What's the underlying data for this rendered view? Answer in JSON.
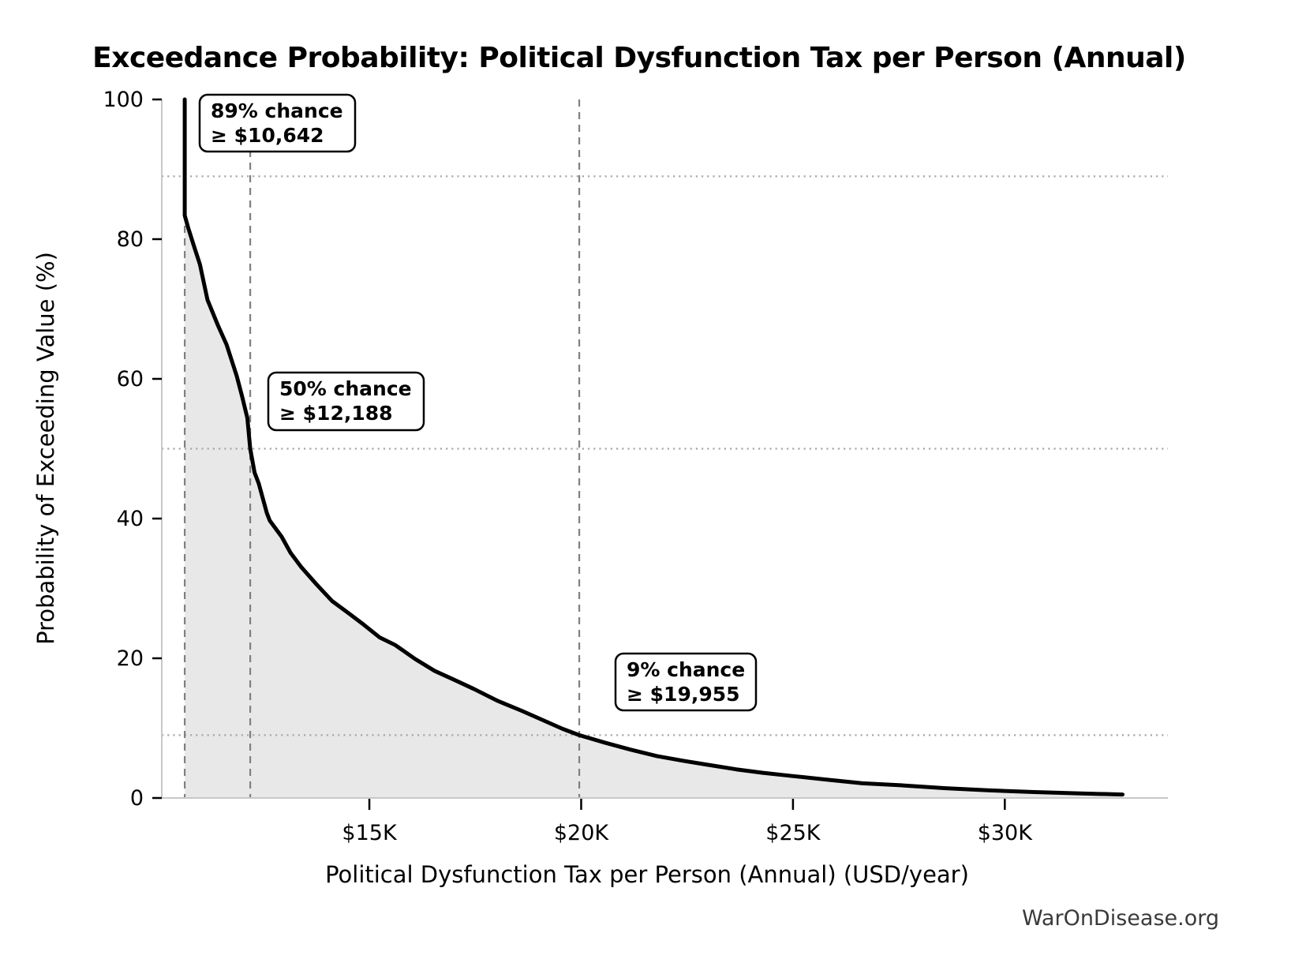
{
  "watermark": "WarOnDisease.org",
  "chart_data": {
    "type": "line",
    "title": "Exceedance Probability: Political Dysfunction Tax per Person (Annual)",
    "xlabel": "Political Dysfunction Tax per Person (Annual) (USD/year)",
    "ylabel": "Probability of Exceeding Value (%)",
    "xlim": [
      10100,
      33850
    ],
    "ylim": [
      0,
      100
    ],
    "grid": "dotted horizontal reference lines at annotation probabilities; dashed vertical reference lines at annotation values",
    "legend_position": "none",
    "x_ticks": [
      {
        "value": 15000,
        "label": "$15K"
      },
      {
        "value": 20000,
        "label": "$20K"
      },
      {
        "value": 25000,
        "label": "$25K"
      },
      {
        "value": 30000,
        "label": "$30K"
      }
    ],
    "y_ticks": [
      {
        "value": 0,
        "label": "0"
      },
      {
        "value": 20,
        "label": "20"
      },
      {
        "value": 40,
        "label": "40"
      },
      {
        "value": 60,
        "label": "60"
      },
      {
        "value": 80,
        "label": "80"
      },
      {
        "value": 100,
        "label": "100"
      }
    ],
    "series": [
      {
        "name": "exceedance-probability-curve",
        "fill_under_curve": true,
        "points": [
          [
            10642,
            100
          ],
          [
            10642,
            83.4
          ],
          [
            10720,
            81.7
          ],
          [
            10850,
            79.2
          ],
          [
            11000,
            76.4
          ],
          [
            11180,
            71.3
          ],
          [
            11430,
            67.6
          ],
          [
            11630,
            64.9
          ],
          [
            11870,
            60.4
          ],
          [
            12000,
            57.4
          ],
          [
            12120,
            54.4
          ],
          [
            12188,
            50.0
          ],
          [
            12290,
            46.6
          ],
          [
            12390,
            45.0
          ],
          [
            12580,
            40.8
          ],
          [
            12650,
            39.7
          ],
          [
            12930,
            37.4
          ],
          [
            13140,
            35.1
          ],
          [
            13400,
            33.0
          ],
          [
            13750,
            30.6
          ],
          [
            14120,
            28.2
          ],
          [
            14500,
            26.5
          ],
          [
            14870,
            24.8
          ],
          [
            15240,
            23.0
          ],
          [
            15610,
            21.9
          ],
          [
            16080,
            19.9
          ],
          [
            16540,
            18.2
          ],
          [
            17010,
            16.9
          ],
          [
            17470,
            15.6
          ],
          [
            18030,
            13.9
          ],
          [
            18590,
            12.5
          ],
          [
            19150,
            11.0
          ],
          [
            19560,
            9.9
          ],
          [
            19955,
            9.0
          ],
          [
            20570,
            7.9
          ],
          [
            21180,
            6.9
          ],
          [
            21790,
            6.0
          ],
          [
            22430,
            5.3
          ],
          [
            23040,
            4.7
          ],
          [
            23660,
            4.1
          ],
          [
            24290,
            3.6
          ],
          [
            24900,
            3.2
          ],
          [
            25840,
            2.6
          ],
          [
            26640,
            2.1
          ],
          [
            27600,
            1.8
          ],
          [
            28600,
            1.4
          ],
          [
            29600,
            1.1
          ],
          [
            30700,
            0.85
          ],
          [
            31800,
            0.65
          ],
          [
            32780,
            0.5
          ]
        ]
      }
    ],
    "annotations": [
      {
        "line1": "89% chance",
        "line2": "≥ $10,642",
        "x_value": 10642,
        "probability_pct": 89
      },
      {
        "line1": "50% chance",
        "line2": "≥ $12,188",
        "x_value": 12188,
        "probability_pct": 50
      },
      {
        "line1": "9% chance",
        "line2": "≥ $19,955",
        "x_value": 19955,
        "probability_pct": 9
      }
    ],
    "colors": {
      "curve": "#000000",
      "area_fill": "#e8e8e8",
      "dashed_vline": "#808080",
      "dotted_hline": "#a8a8a8",
      "spine": "#c8c8c8",
      "annotation_box_bg": "#ffffff",
      "annotation_box_border": "#000000",
      "text": "#000000",
      "watermark": "#3a3a3a"
    }
  }
}
